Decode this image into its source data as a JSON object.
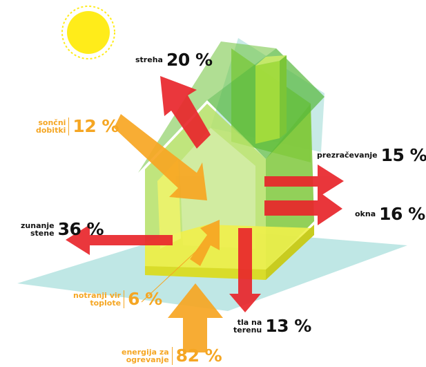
{
  "colors": {
    "loss_arrow": "#e8262b",
    "gain_arrow": "#f7a623",
    "house": "#a6dc3c",
    "ground_plane": "#a9dfdc",
    "sun": "#ffec1a",
    "loss_text": "#111111",
    "gain_text": "#f5a623"
  },
  "icons": {
    "sun": "sun-icon"
  },
  "labels": {
    "streha": {
      "name": "streha",
      "value": "20 %"
    },
    "soncni": {
      "name_line1": "sončni",
      "name_line2": "dobitki",
      "value": "12 %"
    },
    "prezracevanje": {
      "name": "prezračevanje",
      "value": "15 %"
    },
    "okna": {
      "name": "okna",
      "value": "16 %"
    },
    "zunanje": {
      "name_line1": "zunanje",
      "name_line2": "stene",
      "value": "36 %"
    },
    "notranji": {
      "name_line1": "notranji vir",
      "name_line2": "toplote",
      "value": "6 %"
    },
    "tla": {
      "name_line1": "tla na",
      "name_line2": "terenu",
      "value": "13 %"
    },
    "energija": {
      "name_line1": "energija za",
      "name_line2": "ogrevanje",
      "value": "82 %"
    }
  }
}
